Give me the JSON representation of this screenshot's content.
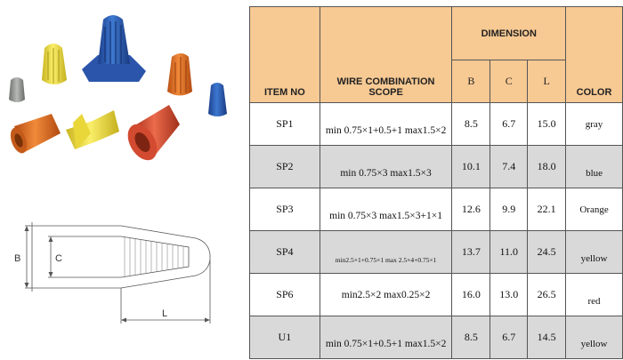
{
  "header": {
    "item": "ITEM NO",
    "scope_line1": "WIRE COMBINATION",
    "scope_line2": "SCOPE",
    "dimension": "DIMENSION",
    "b": "B",
    "c": "C",
    "l": "L",
    "color": "COLOR"
  },
  "rows": [
    {
      "item": "SP1",
      "combo": "min 0.75×1+0.5+1  max1.5×2",
      "b": "8.5",
      "c": "6.7",
      "l": "15.0",
      "color": "gray"
    },
    {
      "item": "SP2",
      "combo": "min 0.75×3  max1.5×3",
      "b": "10.1",
      "c": "7.4",
      "l": "18.0",
      "color": "blue"
    },
    {
      "item": "SP3",
      "combo": "min 0.75×3   max1.5×3+1×1",
      "b": "12.6",
      "c": "9.9",
      "l": "22.1",
      "color": "Orange"
    },
    {
      "item": "SP4",
      "combo": "min2.5×1+0.75×1  max 2.5×4+0.75×1",
      "b": "13.7",
      "c": "11.0",
      "l": "24.5",
      "color": "yellow"
    },
    {
      "item": "SP6",
      "combo": "min2.5×2  max0.25×2",
      "b": "16.0",
      "c": "13.0",
      "l": "26.5",
      "color": "red"
    },
    {
      "item": "U1",
      "combo": "min 0.75×1+0.5+1  max1.5×2",
      "b": "8.5",
      "c": "6.7",
      "l": "14.5",
      "color": "yellow"
    }
  ],
  "drawing": {
    "b": "B",
    "c": "C",
    "l": "L"
  },
  "colors": {
    "header_bg": "#f7c993",
    "row_shade": "#d9d9d9",
    "connector_blue": "#2f5fb8",
    "connector_yellow": "#f2e04a",
    "connector_orange": "#e8792a",
    "connector_red": "#e0533a",
    "connector_gray": "#9a9c9a"
  }
}
